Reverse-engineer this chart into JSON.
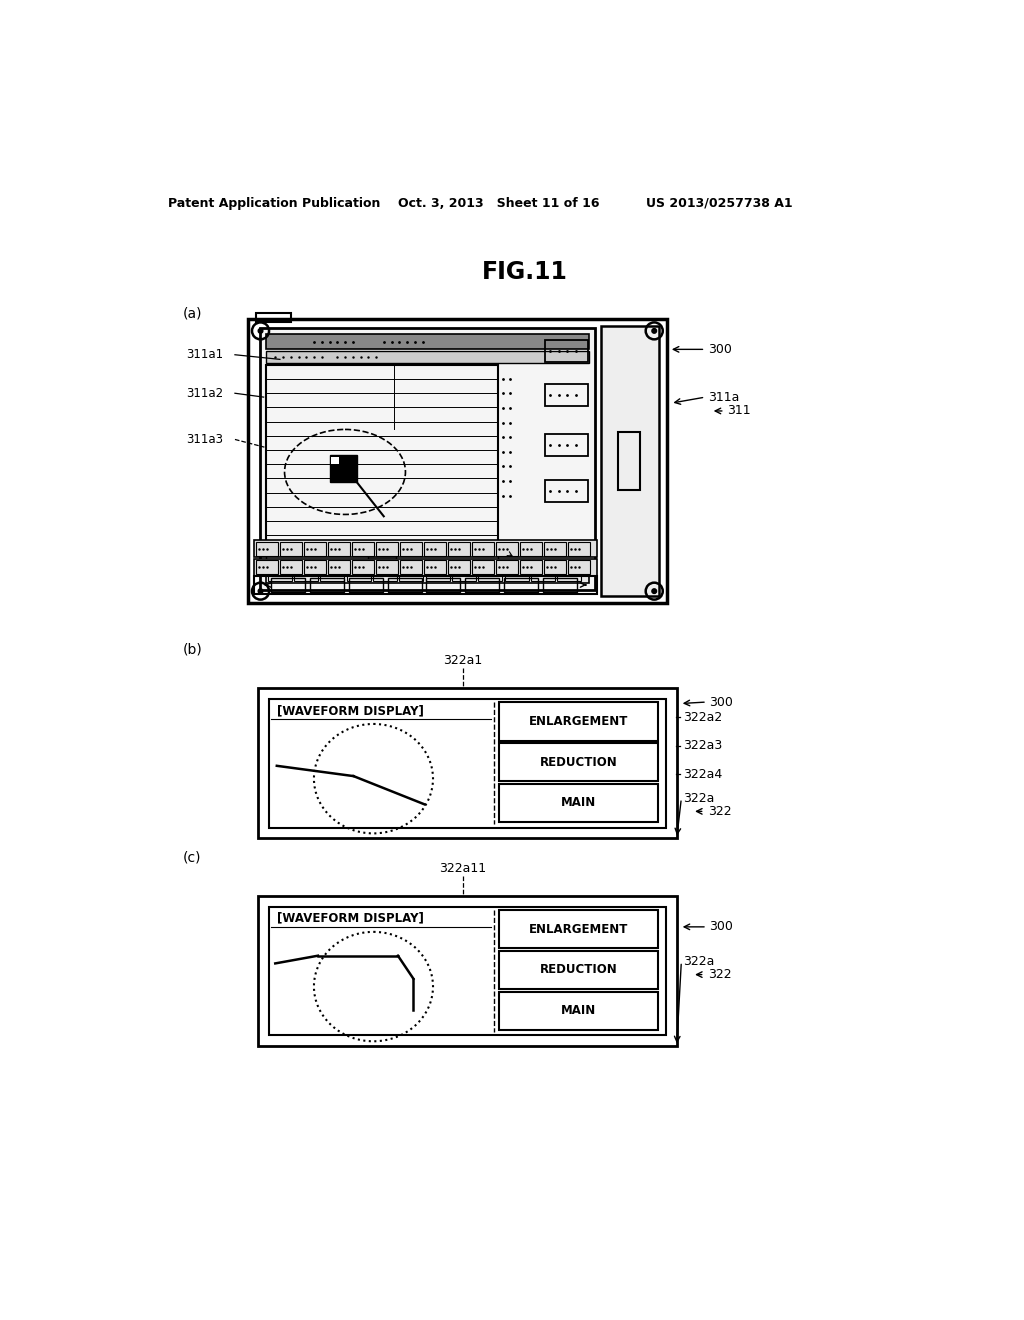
{
  "title": "FIG.11",
  "header_left": "Patent Application Publication",
  "header_center": "Oct. 3, 2013   Sheet 11 of 16",
  "header_right": "US 2013/0257738 A1",
  "bg_color": "#ffffff",
  "label_a": "(a)",
  "label_b": "(b)",
  "label_c": "(c)",
  "ref_300": "300",
  "ref_311": "311",
  "ref_311a": "311a",
  "ref_311a1": "311a1",
  "ref_311a2": "311a2",
  "ref_311a3": "311a3",
  "ref_322a1": "322a1",
  "ref_322a2": "322a2",
  "ref_322a3": "322a3",
  "ref_322a4": "322a4",
  "ref_322a": "322a",
  "ref_322": "322",
  "ref_322a11": "322a11",
  "btn_enlargement": "ENLARGEMENT",
  "btn_reduction": "REDUCTION",
  "btn_main": "MAIN",
  "waveform_display": "[WAVEFORM DISPLAY]"
}
